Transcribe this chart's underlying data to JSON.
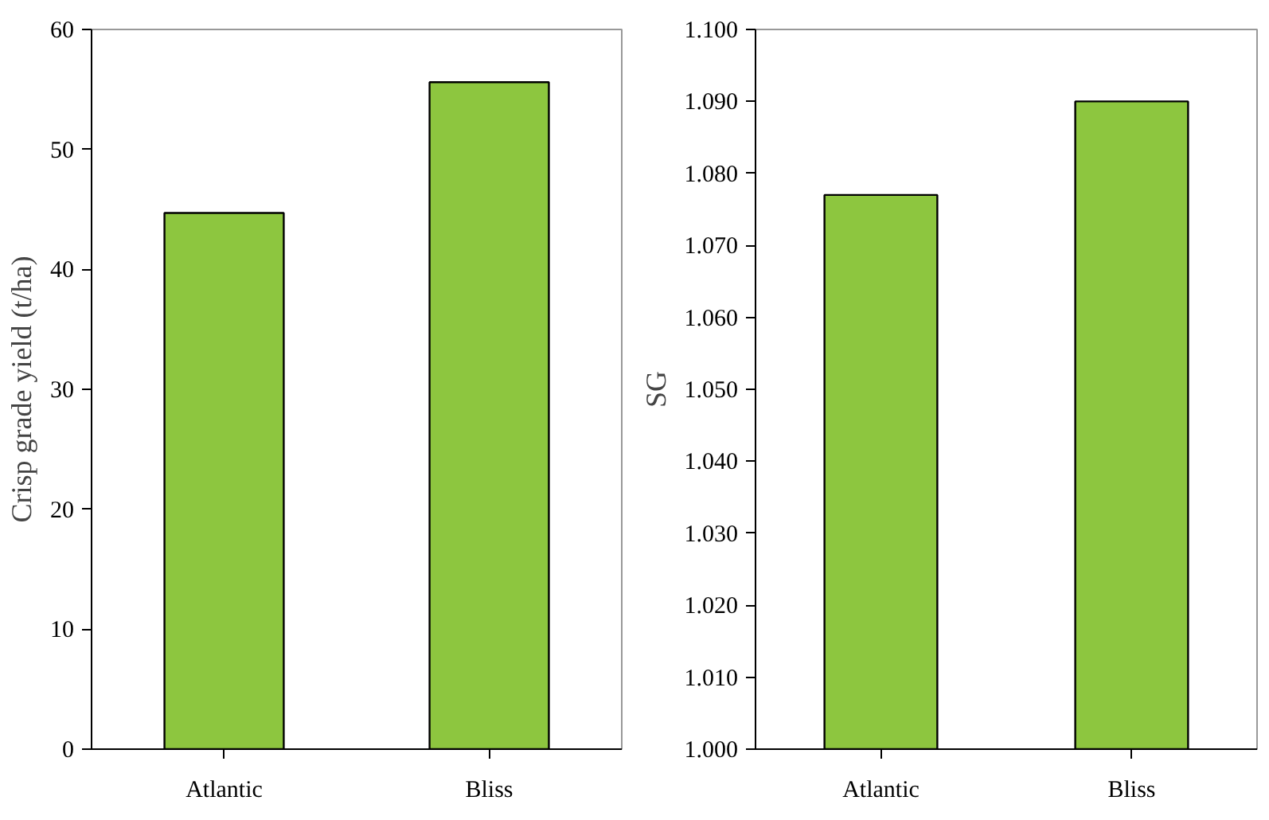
{
  "chart_data": [
    {
      "type": "bar",
      "categories": [
        "Atlantic",
        "Bliss"
      ],
      "values": [
        44.7,
        55.6
      ],
      "color": "#8dc63f",
      "ylabel": "Crisp grade yield (t/ha)",
      "ylim": [
        0,
        60
      ],
      "yticks": [
        0,
        10,
        20,
        30,
        40,
        50,
        60
      ],
      "grid": false
    },
    {
      "type": "bar",
      "categories": [
        "Atlantic",
        "Bliss"
      ],
      "values": [
        1.077,
        1.09
      ],
      "color": "#8dc63f",
      "ylabel": "SG",
      "ylim": [
        1.0,
        1.1
      ],
      "yticks": [
        {
          "value": 1.0,
          "label": "1.000"
        },
        {
          "value": 1.01,
          "label": "1.010"
        },
        {
          "value": 1.02,
          "label": "1.020"
        },
        {
          "value": 1.03,
          "label": "1.030"
        },
        {
          "value": 1.04,
          "label": "1.040"
        },
        {
          "value": 1.05,
          "label": "1.050"
        },
        {
          "value": 1.06,
          "label": "1.060"
        },
        {
          "value": 1.07,
          "label": "1.070"
        },
        {
          "value": 1.08,
          "label": "1.080"
        },
        {
          "value": 1.09,
          "label": "1.090"
        },
        {
          "value": 1.1,
          "label": "1.100"
        }
      ],
      "grid": false
    }
  ]
}
